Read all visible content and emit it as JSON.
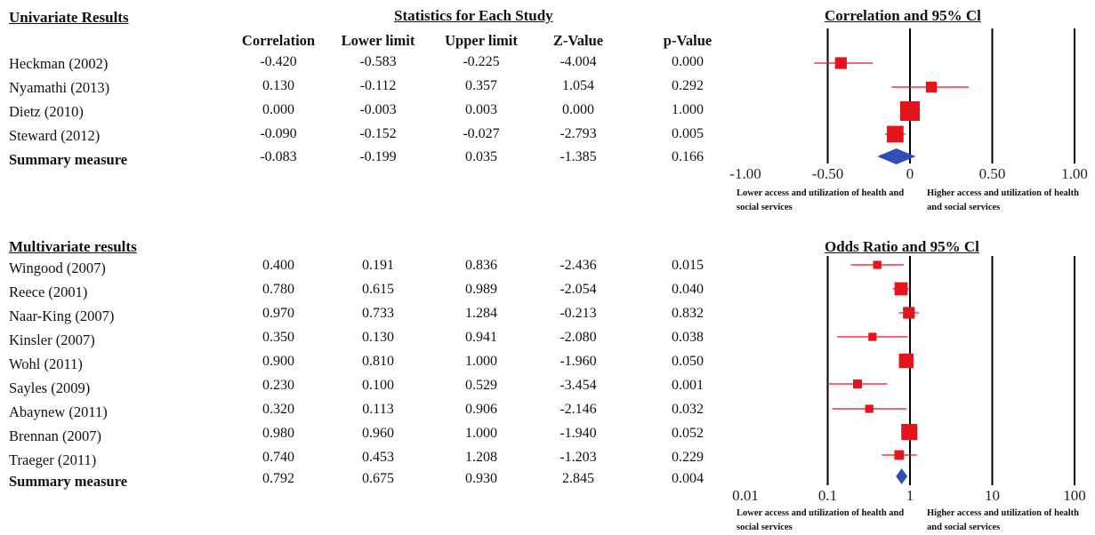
{
  "univariate": {
    "section_title": "Univariate Results",
    "stats_title": "Statistics for Each Study",
    "plot_title": "Correlation and 95% Cl",
    "columns": [
      "Correlation",
      "Lower limit",
      "Upper limit",
      "Z-Value",
      "p-Value"
    ],
    "rows": [
      {
        "study": "Heckman (2002)",
        "values": [
          "-0.420",
          "-0.583",
          "-0.225",
          "-4.004",
          "0.000"
        ]
      },
      {
        "study": "Nyamathi (2013)",
        "values": [
          "0.130",
          "-0.112",
          "0.357",
          "1.054",
          "0.292"
        ]
      },
      {
        "study": "Dietz (2010)",
        "values": [
          "0.000",
          "-0.003",
          "0.003",
          "0.000",
          "1.000"
        ]
      },
      {
        "study": "Steward (2012)",
        "values": [
          "-0.090",
          "-0.152",
          "-0.027",
          "-2.793",
          "0.005"
        ]
      }
    ],
    "summary": {
      "study": "Summary measure",
      "values": [
        "-0.083",
        "-0.199",
        "0.035",
        "-1.385",
        "0.166"
      ]
    },
    "note_left": "Lower access and utilization of health and social services",
    "note_right": "Higher access and utilization of health and social services"
  },
  "multivariate": {
    "section_title": "Multivariate results",
    "plot_title": "Odds Ratio and 95% Cl",
    "rows": [
      {
        "study": "Wingood (2007)",
        "values": [
          "0.400",
          "0.191",
          "0.836",
          "-2.436",
          "0.015"
        ]
      },
      {
        "study": "Reece (2001)",
        "values": [
          "0.780",
          "0.615",
          "0.989",
          "-2.054",
          "0.040"
        ]
      },
      {
        "study": "Naar-King (2007)",
        "values": [
          "0.970",
          "0.733",
          "1.284",
          "-0.213",
          "0.832"
        ]
      },
      {
        "study": "Kinsler (2007)",
        "values": [
          "0.350",
          "0.130",
          "0.941",
          "-2.080",
          "0.038"
        ]
      },
      {
        "study": "Wohl (2011)",
        "values": [
          "0.900",
          "0.810",
          "1.000",
          "-1.960",
          "0.050"
        ]
      },
      {
        "study": "Sayles (2009)",
        "values": [
          "0.230",
          "0.100",
          "0.529",
          "-3.454",
          "0.001"
        ]
      },
      {
        "study": "Abaynew (2011)",
        "values": [
          "0.320",
          "0.113",
          "0.906",
          "-2.146",
          "0.032"
        ]
      },
      {
        "study": "Brennan (2007)",
        "values": [
          "0.980",
          "0.960",
          "1.000",
          "-1.940",
          "0.052"
        ]
      },
      {
        "study": "Traeger (2011)",
        "values": [
          "0.740",
          "0.453",
          "1.208",
          "-1.203",
          "0.229"
        ]
      }
    ],
    "summary": {
      "study": "Summary measure",
      "values": [
        "0.792",
        "0.675",
        "0.930",
        "2.845",
        "0.004"
      ]
    },
    "note_left": "Lower access and utilization of health and social services",
    "note_right": "Higher access and utilization of health and social services"
  },
  "chart_data": [
    {
      "type": "forest",
      "title": "Correlation and 95% Cl",
      "scale": "linear",
      "xlim": [
        -1.0,
        1.0
      ],
      "ticks": [
        "-1.00",
        "-0.50",
        "0",
        "0.50",
        "1.00"
      ],
      "tick_values": [
        -1.0,
        -0.5,
        0,
        0.5,
        1.0
      ],
      "points": [
        {
          "label": "Heckman (2002)",
          "estimate": -0.42,
          "lower": -0.583,
          "upper": -0.225,
          "weight": 0.45
        },
        {
          "label": "Nyamathi (2013)",
          "estimate": 0.13,
          "lower": -0.112,
          "upper": 0.357,
          "weight": 0.4
        },
        {
          "label": "Dietz (2010)",
          "estimate": 0.0,
          "lower": -0.003,
          "upper": 0.003,
          "weight": 1.0
        },
        {
          "label": "Steward (2012)",
          "estimate": -0.09,
          "lower": -0.152,
          "upper": -0.027,
          "weight": 0.8
        }
      ],
      "summary": {
        "estimate": -0.083,
        "lower": -0.199,
        "upper": 0.035
      },
      "colors": {
        "marker": "#e3141b",
        "summary": "#2f4fb3",
        "axis": "#000000"
      }
    },
    {
      "type": "forest",
      "title": "Odds Ratio and 95% Cl",
      "scale": "log",
      "xlim": [
        0.01,
        100
      ],
      "ticks": [
        "0.01",
        "0.1",
        "1",
        "10",
        "100"
      ],
      "tick_values": [
        0.01,
        0.1,
        1,
        10,
        100
      ],
      "points": [
        {
          "label": "Wingood (2007)",
          "estimate": 0.4,
          "lower": 0.191,
          "upper": 0.836,
          "weight": 0.2
        },
        {
          "label": "Reece (2001)",
          "estimate": 0.78,
          "lower": 0.615,
          "upper": 0.989,
          "weight": 0.55
        },
        {
          "label": "Naar-King (2007)",
          "estimate": 0.97,
          "lower": 0.733,
          "upper": 1.284,
          "weight": 0.45
        },
        {
          "label": "Kinsler (2007)",
          "estimate": 0.35,
          "lower": 0.13,
          "upper": 0.941,
          "weight": 0.2
        },
        {
          "label": "Wohl (2011)",
          "estimate": 0.9,
          "lower": 0.81,
          "upper": 1.0,
          "weight": 0.65
        },
        {
          "label": "Sayles (2009)",
          "estimate": 0.23,
          "lower": 0.1,
          "upper": 0.529,
          "weight": 0.25
        },
        {
          "label": "Abaynew (2011)",
          "estimate": 0.32,
          "lower": 0.113,
          "upper": 0.906,
          "weight": 0.2
        },
        {
          "label": "Brennan (2007)",
          "estimate": 0.98,
          "lower": 0.96,
          "upper": 1.0,
          "weight": 0.75
        },
        {
          "label": "Traeger (2011)",
          "estimate": 0.74,
          "lower": 0.453,
          "upper": 1.208,
          "weight": 0.3
        }
      ],
      "summary": {
        "estimate": 0.792,
        "lower": 0.675,
        "upper": 0.93
      },
      "colors": {
        "marker": "#e3141b",
        "summary": "#2f4fb3",
        "axis": "#000000"
      }
    }
  ]
}
